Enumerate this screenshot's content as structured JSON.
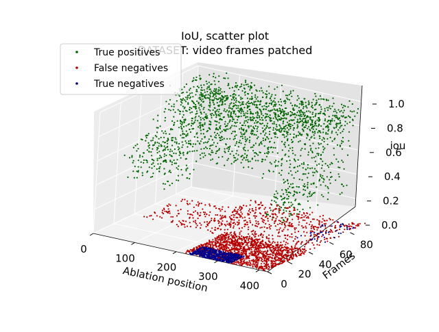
{
  "chart_data": {
    "type": "scatter",
    "projection": "3d",
    "title_line1": "IoU, scatter plot",
    "title_line2": "DATASET: video frames patched",
    "xlabel": "Ablation position",
    "ylabel": "Frames",
    "zlabel": "iou",
    "x_ticks": [
      "0",
      "100",
      "200",
      "300",
      "400"
    ],
    "y_ticks": [
      "0",
      "20",
      "40",
      "60",
      "80"
    ],
    "z_ticks": [
      "0.0",
      "0.2",
      "0.4",
      "0.6",
      "0.8",
      "1.0"
    ],
    "xlim": [
      0,
      420
    ],
    "ylim": [
      0,
      95
    ],
    "zlim": [
      0,
      1
    ],
    "grid": true,
    "legend_position": "top-left",
    "series": [
      {
        "name": "True positives",
        "color": "#006400",
        "clusters": [
          {
            "x": [
              20,
              400
            ],
            "y": [
              55,
              95
            ],
            "z": [
              0.78,
              1.0
            ],
            "n": 900
          },
          {
            "x": [
              20,
              300
            ],
            "y": [
              35,
              95
            ],
            "z": [
              0.55,
              0.85
            ],
            "n": 650
          },
          {
            "x": [
              10,
              120
            ],
            "y": [
              20,
              60
            ],
            "z": [
              0.35,
              0.65
            ],
            "n": 200
          },
          {
            "x": [
              320,
              400
            ],
            "y": [
              30,
              90
            ],
            "z": [
              0.3,
              0.75
            ],
            "n": 240
          },
          {
            "x": [
              250,
              310
            ],
            "y": [
              60,
              90
            ],
            "z": [
              0.05,
              0.25
            ],
            "n": 60
          }
        ]
      },
      {
        "name": "False negatives",
        "color": "#b40000",
        "clusters": [
          {
            "x": [
              220,
              420
            ],
            "y": [
              0,
              40
            ],
            "z": [
              0,
              0.02
            ],
            "n": 1400
          },
          {
            "x": [
              150,
              420
            ],
            "y": [
              40,
              95
            ],
            "z": [
              0,
              0.02
            ],
            "n": 500
          },
          {
            "x": [
              30,
              200
            ],
            "y": [
              35,
              75
            ],
            "z": [
              0,
              0.02
            ],
            "n": 160
          }
        ]
      },
      {
        "name": "True negatives",
        "color": "#00008b",
        "clusters": [
          {
            "x": [
              230,
              330
            ],
            "y": [
              0,
              14
            ],
            "z": [
              0,
              0.01
            ],
            "n": 600
          },
          {
            "x": [
              350,
              420
            ],
            "y": [
              55,
              90
            ],
            "z": [
              0,
              0.01
            ],
            "n": 40
          }
        ]
      }
    ]
  }
}
